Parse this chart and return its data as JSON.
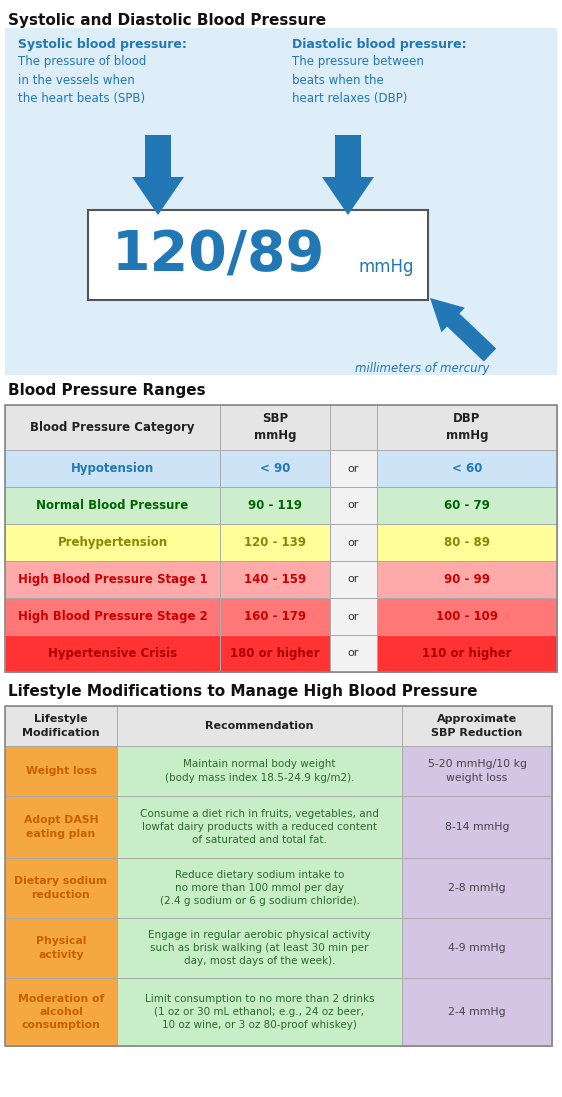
{
  "title1": "Systolic and Diastolic Blood Pressure",
  "title2": "Blood Pressure Ranges",
  "title3": "Lifestyle Modifications to Manage High Blood Pressure",
  "bg_top": "#ddeef8",
  "bg_white": "#ffffff",
  "arrow_color": "#2278b5",
  "systolic_label": "Systolic blood pressure:",
  "systolic_text": "The pressure of blood\nin the vessels when\nthe heart beats (SPB)",
  "diastolic_label": "Diastolic blood pressure:",
  "diastolic_text": "The pressure between\nbeats when the\nheart relaxes (DBP)",
  "reading": "120/89",
  "reading_unit": "mmHg",
  "mercury_label": "millimeters of mercury",
  "bp_rows": [
    {
      "cat": "Hypotension",
      "sbp": "< 90",
      "dbp": "< 60",
      "bg": "#cce4f5",
      "tc": "#2278b5"
    },
    {
      "cat": "Normal Blood Pressure",
      "sbp": "90 - 119",
      "dbp": "60 - 79",
      "bg": "#cceecc",
      "tc": "#006600"
    },
    {
      "cat": "Prehypertension",
      "sbp": "120 - 139",
      "dbp": "80 - 89",
      "bg": "#ffff99",
      "tc": "#888800"
    },
    {
      "cat": "High Blood Pressure Stage 1",
      "sbp": "140 - 159",
      "dbp": "90 - 99",
      "bg": "#ffaaaa",
      "tc": "#cc0000"
    },
    {
      "cat": "High Blood Pressure Stage 2",
      "sbp": "160 - 179",
      "dbp": "100 - 109",
      "bg": "#ff7777",
      "tc": "#cc0000"
    },
    {
      "cat": "Hypertensive Crisis",
      "sbp": "180 or higher",
      "dbp": "110 or higher",
      "bg": "#ff3333",
      "tc": "#aa0000"
    }
  ],
  "lifestyle_rows": [
    {
      "mod": "Weight loss",
      "rec": "Maintain normal body weight\n(body mass index 18.5-24.9 kg/m2).",
      "sbp": "5-20 mmHg/10 kg\nweight loss"
    },
    {
      "mod": "Adopt DASH\neating plan",
      "rec": "Consume a diet rich in fruits, vegetables, and\nlowfat dairy products with a reduced content\nof saturated and total fat.",
      "sbp": "8-14 mmHg"
    },
    {
      "mod": "Dietary sodium\nreduction",
      "rec": "Reduce dietary sodium intake to\nno more than 100 mmol per day\n(2.4 g sodium or 6 g sodium chloride).",
      "sbp": "2-8 mmHg"
    },
    {
      "mod": "Physical\nactivity",
      "rec": "Engage in regular aerobic physical activity\nsuch as brisk walking (at least 30 min per\nday, most days of the week).",
      "sbp": "4-9 mmHg"
    },
    {
      "mod": "Moderation of\nalcohol\nconsumption",
      "rec": "Limit consumption to no more than 2 drinks\n(1 oz or 30 mL ethanol; e.g., 24 oz beer,\n10 oz wine, or 3 oz 80-proof whiskey)",
      "sbp": "2-4 mmHg"
    }
  ],
  "orange_color": "#f5a742",
  "green_rec_color": "#c8eec8",
  "purple_sbp_color": "#d5c5e5",
  "orange_text": "#c86000",
  "green_text": "#2d6a2d",
  "gray_text": "#444444"
}
